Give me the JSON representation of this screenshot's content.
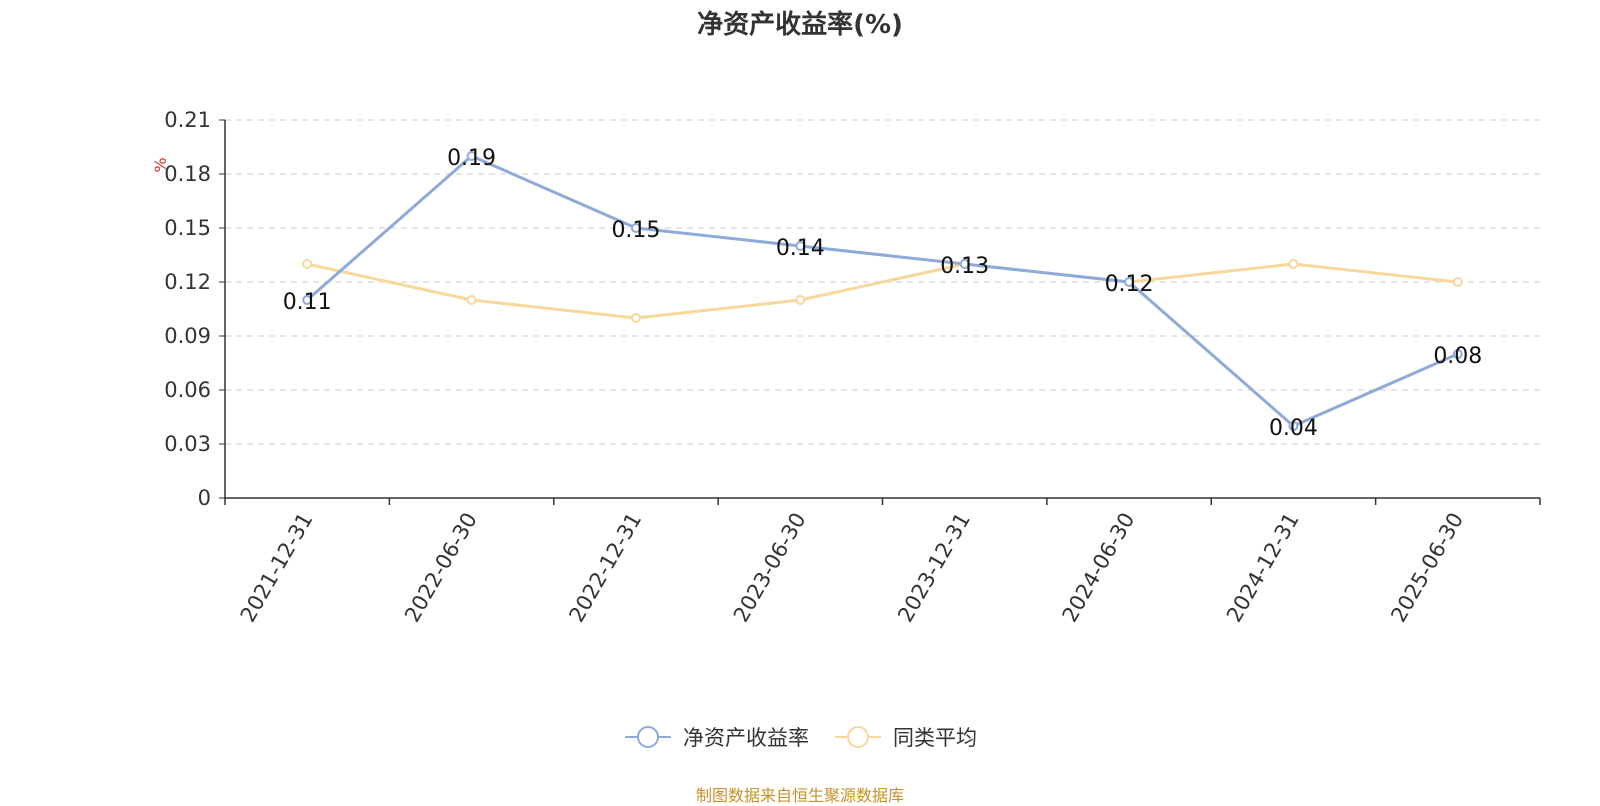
{
  "chart_data": {
    "type": "line",
    "title": "净资产收益率(%)",
    "ylabel": "%",
    "categories": [
      "2021-12-31",
      "2022-06-30",
      "2022-12-31",
      "2023-06-30",
      "2023-12-31",
      "2024-06-30",
      "2024-12-31",
      "2025-06-30"
    ],
    "yticks": [
      "0",
      "0.03",
      "0.06",
      "0.09",
      "0.12",
      "0.15",
      "0.18",
      "0.21"
    ],
    "ylim": [
      0,
      0.21
    ],
    "grid": true,
    "legend_position": "bottom",
    "series": [
      {
        "name": "净资产收益率",
        "color": "#8eaad8",
        "values": [
          0.11,
          0.19,
          0.15,
          0.14,
          0.13,
          0.12,
          0.04,
          0.08
        ],
        "labels": [
          "0.11",
          "0.19",
          "0.15",
          "0.14",
          "0.13",
          "0.12",
          "0.04",
          "0.08"
        ]
      },
      {
        "name": "同类平均",
        "color": "#f8d89a",
        "values": [
          0.13,
          0.11,
          0.1,
          0.11,
          0.13,
          0.12,
          0.13,
          0.12
        ]
      }
    ]
  },
  "source_note": "制图数据来自恒生聚源数据库"
}
